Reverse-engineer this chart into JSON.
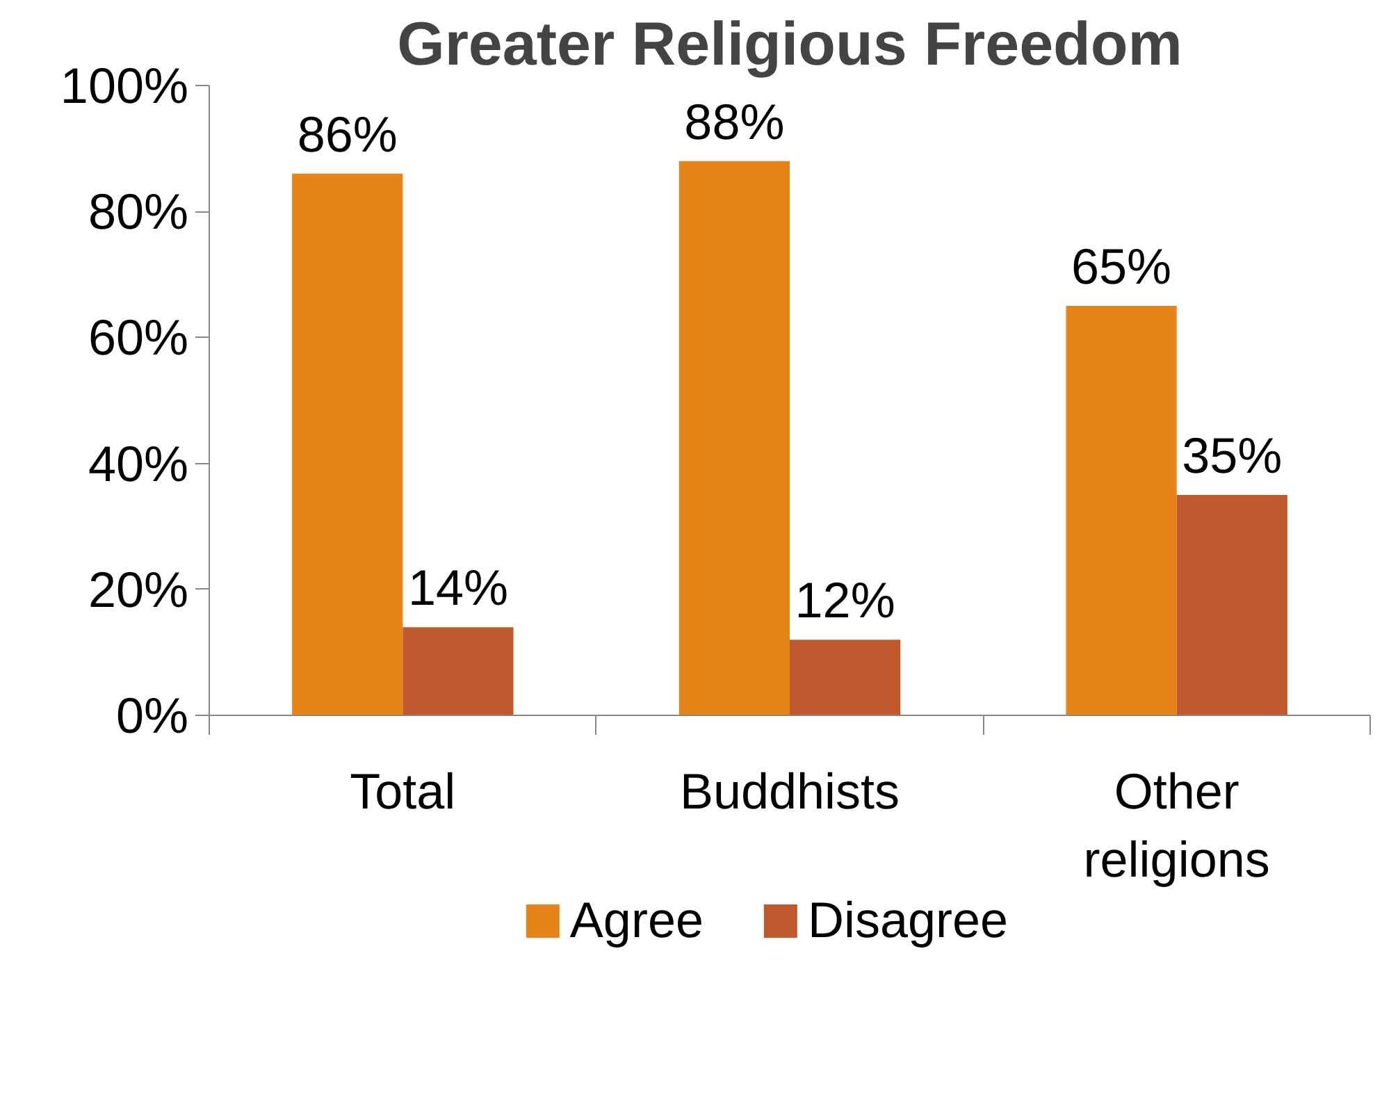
{
  "chart_data": {
    "type": "bar",
    "title": "Greater Religious Freedom",
    "categories": [
      "Total",
      "Buddhists",
      "Other religions"
    ],
    "series": [
      {
        "name": "Agree",
        "color": "#e6841a",
        "values": [
          86,
          88,
          65
        ],
        "value_labels": [
          "86%",
          "88%",
          "65%"
        ]
      },
      {
        "name": "Disagree",
        "color": "#c05a2e",
        "values": [
          14,
          12,
          35
        ],
        "value_labels": [
          "14%",
          "12%",
          "35%"
        ]
      }
    ],
    "ylim": [
      0,
      100
    ],
    "yticks": [
      {
        "value": 0,
        "label": "0%"
      },
      {
        "value": 20,
        "label": "20%"
      },
      {
        "value": 40,
        "label": "40%"
      },
      {
        "value": 60,
        "label": "60%"
      },
      {
        "value": 80,
        "label": "80%"
      },
      {
        "value": 100,
        "label": "100%"
      }
    ],
    "grid": false,
    "legend": "bottom"
  }
}
